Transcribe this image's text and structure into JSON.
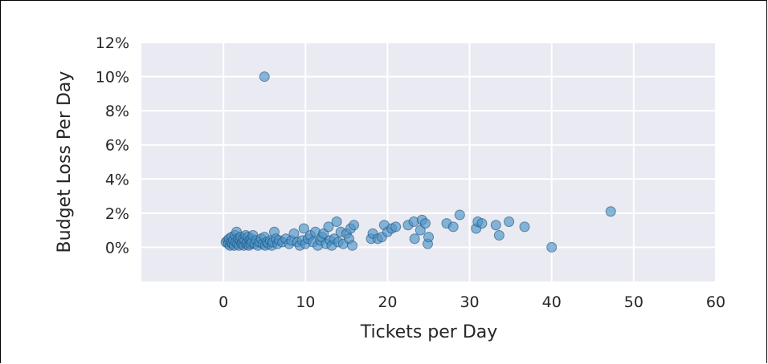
{
  "chart_data": {
    "type": "scatter",
    "title": "",
    "xlabel": "Tickets per Day",
    "ylabel": "Budget Loss Per Day",
    "xlim": [
      -10,
      60
    ],
    "ylim": [
      -2,
      12
    ],
    "x_ticks": [
      0,
      10,
      20,
      30,
      40,
      50,
      60
    ],
    "x_tick_labels": [
      "0",
      "10",
      "20",
      "30",
      "40",
      "50",
      "60"
    ],
    "y_ticks": [
      0,
      2,
      4,
      6,
      8,
      10,
      12
    ],
    "y_tick_labels": [
      "0%",
      "2%",
      "4%",
      "6%",
      "8%",
      "10%",
      "12%"
    ],
    "grid": true,
    "colors": {
      "background": "#eaeaf2",
      "grid": "#ffffff",
      "marker_fill": "#4c94c8",
      "marker_edge": "#1f4f74"
    },
    "points": [
      [
        0.3,
        0.3
      ],
      [
        0.5,
        0.4
      ],
      [
        0.6,
        0.2
      ],
      [
        0.7,
        0.5
      ],
      [
        0.8,
        0.1
      ],
      [
        0.9,
        0.3
      ],
      [
        1.0,
        0.6
      ],
      [
        1.1,
        0.2
      ],
      [
        1.2,
        0.4
      ],
      [
        1.3,
        0.1
      ],
      [
        1.4,
        0.7
      ],
      [
        1.5,
        0.3
      ],
      [
        1.6,
        0.9
      ],
      [
        1.7,
        0.2
      ],
      [
        1.8,
        0.5
      ],
      [
        1.9,
        0.1
      ],
      [
        2.0,
        0.4
      ],
      [
        2.1,
        0.6
      ],
      [
        2.2,
        0.2
      ],
      [
        2.3,
        0.3
      ],
      [
        2.4,
        0.5
      ],
      [
        2.5,
        0.1
      ],
      [
        2.6,
        0.4
      ],
      [
        2.7,
        0.7
      ],
      [
        2.8,
        0.2
      ],
      [
        2.9,
        0.3
      ],
      [
        3.0,
        0.6
      ],
      [
        3.1,
        0.1
      ],
      [
        3.2,
        0.4
      ],
      [
        3.3,
        0.2
      ],
      [
        3.4,
        0.5
      ],
      [
        3.5,
        0.3
      ],
      [
        3.6,
        0.7
      ],
      [
        3.8,
        0.2
      ],
      [
        4.0,
        0.4
      ],
      [
        4.2,
        0.1
      ],
      [
        4.4,
        0.3
      ],
      [
        4.6,
        0.5
      ],
      [
        4.8,
        0.2
      ],
      [
        5.0,
        0.6
      ],
      [
        5.1,
        0.1
      ],
      [
        5.3,
        0.3
      ],
      [
        5.5,
        0.2
      ],
      [
        5.7,
        0.4
      ],
      [
        5.9,
        0.1
      ],
      [
        6.0,
        0.3
      ],
      [
        6.2,
        0.9
      ],
      [
        6.4,
        0.5
      ],
      [
        6.6,
        0.2
      ],
      [
        6.8,
        0.4
      ],
      [
        7.2,
        0.3
      ],
      [
        7.6,
        0.5
      ],
      [
        8.0,
        0.2
      ],
      [
        8.3,
        0.4
      ],
      [
        8.6,
        0.8
      ],
      [
        9.0,
        0.3
      ],
      [
        9.3,
        0.1
      ],
      [
        9.6,
        0.4
      ],
      [
        9.8,
        1.1
      ],
      [
        10.0,
        0.2
      ],
      [
        10.3,
        0.5
      ],
      [
        10.6,
        0.7
      ],
      [
        10.9,
        0.3
      ],
      [
        11.2,
        0.9
      ],
      [
        11.5,
        0.1
      ],
      [
        11.8,
        0.4
      ],
      [
        12.0,
        0.6
      ],
      [
        12.2,
        0.8
      ],
      [
        12.5,
        0.2
      ],
      [
        12.8,
        1.2
      ],
      [
        13.0,
        0.4
      ],
      [
        13.2,
        0.1
      ],
      [
        13.5,
        0.5
      ],
      [
        13.8,
        1.5
      ],
      [
        14.0,
        0.3
      ],
      [
        14.3,
        0.9
      ],
      [
        14.6,
        0.2
      ],
      [
        15.0,
        0.8
      ],
      [
        15.3,
        0.5
      ],
      [
        15.5,
        1.1
      ],
      [
        15.7,
        0.1
      ],
      [
        15.9,
        1.3
      ],
      [
        18.0,
        0.5
      ],
      [
        18.2,
        0.8
      ],
      [
        18.8,
        0.5
      ],
      [
        19.3,
        0.6
      ],
      [
        19.6,
        1.3
      ],
      [
        20.0,
        0.9
      ],
      [
        20.5,
        1.1
      ],
      [
        21.0,
        1.2
      ],
      [
        22.5,
        1.3
      ],
      [
        23.2,
        1.5
      ],
      [
        23.3,
        0.5
      ],
      [
        24.0,
        1.0
      ],
      [
        24.2,
        1.6
      ],
      [
        24.6,
        1.4
      ],
      [
        24.9,
        0.2
      ],
      [
        25.0,
        0.6
      ],
      [
        27.2,
        1.4
      ],
      [
        28.0,
        1.2
      ],
      [
        28.8,
        1.9
      ],
      [
        30.8,
        1.1
      ],
      [
        31.0,
        1.5
      ],
      [
        31.5,
        1.4
      ],
      [
        33.2,
        1.3
      ],
      [
        33.6,
        0.7
      ],
      [
        34.8,
        1.5
      ],
      [
        36.7,
        1.2
      ],
      [
        40.0,
        0.0
      ],
      [
        47.2,
        2.1
      ],
      [
        5.0,
        10.0
      ]
    ]
  }
}
